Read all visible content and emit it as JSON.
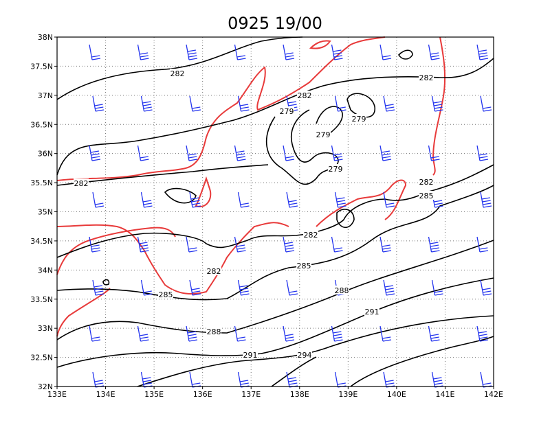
{
  "title": "0925 19/00",
  "lon_labels": [
    "133E",
    "134E",
    "135E",
    "136E",
    "137E",
    "138E",
    "139E",
    "140E",
    "141E",
    "142E"
  ],
  "lat_labels": [
    "32N",
    "32.5N",
    "33N",
    "33.5N",
    "34N",
    "34.5N",
    "35N",
    "35.5N",
    "36N",
    "36.5N",
    "37N",
    "37.5N",
    "38N"
  ],
  "contour_labels": [
    "282",
    "282",
    "279",
    "279",
    "279",
    "279",
    "282",
    "282",
    "282",
    "285",
    "282",
    "282",
    "285",
    "288",
    "285",
    "291",
    "288",
    "291",
    "294"
  ]
}
